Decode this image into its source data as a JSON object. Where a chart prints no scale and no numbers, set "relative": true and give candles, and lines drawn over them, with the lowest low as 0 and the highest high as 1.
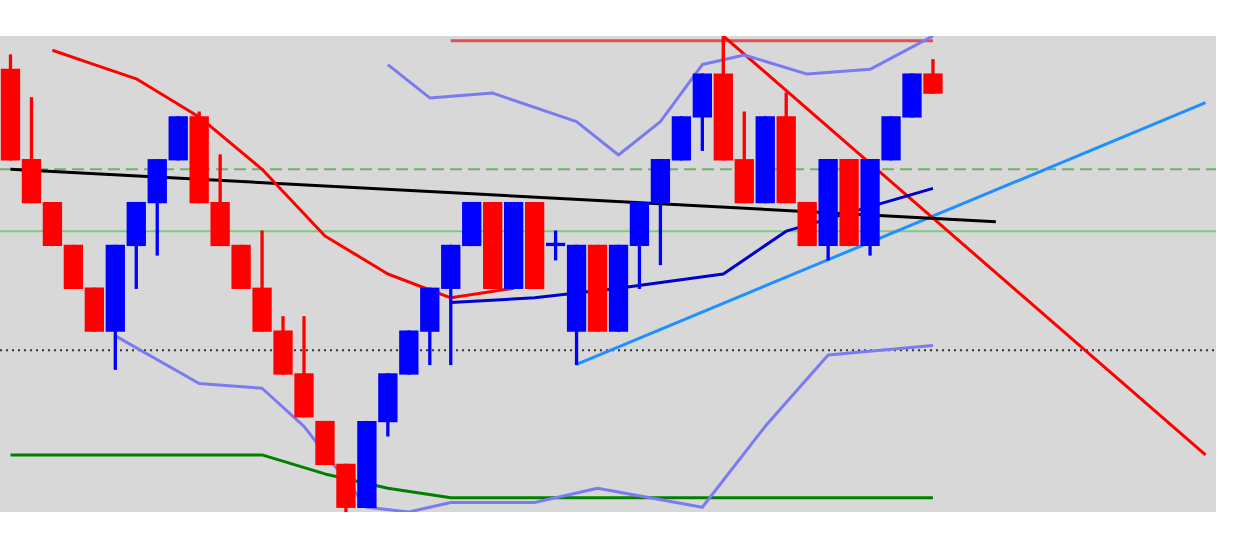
{
  "chart_data": {
    "type": "candlestick",
    "relative": true,
    "legend": false,
    "categories": [
      null,
      null,
      null,
      null,
      null,
      null,
      null,
      null,
      null,
      null,
      null,
      null,
      null,
      null,
      null,
      null,
      null,
      null,
      null,
      null,
      null,
      null,
      null,
      null,
      null,
      null,
      null,
      null,
      null,
      null,
      null,
      null,
      null,
      null,
      null,
      null,
      null,
      null,
      null,
      null,
      null,
      null,
      null,
      null,
      null,
      null,
      null,
      null,
      null,
      null,
      null,
      null,
      null,
      null,
      null,
      null,
      null,
      null
    ],
    "ohlc": [
      [
        0.93,
        0.96,
        0.74,
        0.74
      ],
      [
        0.74,
        0.87,
        0.65,
        0.65
      ],
      [
        0.65,
        0.65,
        0.56,
        0.56
      ],
      [
        0.56,
        0.56,
        0.47,
        0.47
      ],
      [
        0.47,
        0.47,
        0.38,
        0.38
      ],
      [
        0.38,
        0.56,
        0.3,
        0.56
      ],
      [
        0.56,
        0.65,
        0.47,
        0.65
      ],
      [
        0.65,
        0.74,
        0.54,
        0.74
      ],
      [
        0.74,
        0.83,
        0.74,
        0.83
      ],
      [
        0.83,
        0.84,
        0.65,
        0.65
      ],
      [
        0.65,
        0.75,
        0.56,
        0.56
      ],
      [
        0.56,
        0.56,
        0.47,
        0.47
      ],
      [
        0.47,
        0.59,
        0.38,
        0.38
      ],
      [
        0.38,
        0.41,
        0.29,
        0.29
      ],
      [
        0.29,
        0.41,
        0.2,
        0.2
      ],
      [
        0.19,
        0.19,
        0.1,
        0.1
      ],
      [
        0.1,
        0.1,
        0,
        0.01
      ],
      [
        0.01,
        0.19,
        0.01,
        0.19
      ],
      [
        0.19,
        0.29,
        0.16,
        0.29
      ],
      [
        0.29,
        0.38,
        0.29,
        0.38
      ],
      [
        0.38,
        0.47,
        0.31,
        0.47
      ],
      [
        0.47,
        0.56,
        0.31,
        0.56
      ],
      [
        0.56,
        0.65,
        0.56,
        0.65
      ],
      [
        0.65,
        0.65,
        0.47,
        0.47
      ],
      [
        0.47,
        0.65,
        0.47,
        0.65
      ],
      [
        0.65,
        0.65,
        0.47,
        0.47
      ],
      [
        0.56,
        0.59,
        0.53,
        0.56
      ],
      [
        0.38,
        0.56,
        0.31,
        0.56
      ],
      [
        0.56,
        0.56,
        0.38,
        0.38
      ],
      [
        0.38,
        0.56,
        0.38,
        0.56
      ],
      [
        0.56,
        0.65,
        0.47,
        0.65
      ],
      [
        0.65,
        0.74,
        0.52,
        0.74
      ],
      [
        0.74,
        0.83,
        0.74,
        0.83
      ],
      [
        0.83,
        0.92,
        0.76,
        0.92
      ],
      [
        0.92,
        1,
        0.74,
        0.74
      ],
      [
        0.74,
        0.84,
        0.65,
        0.65
      ],
      [
        0.65,
        0.83,
        0.65,
        0.83
      ],
      [
        0.83,
        0.88,
        0.65,
        0.65
      ],
      [
        0.65,
        0.65,
        0.56,
        0.56
      ],
      [
        0.56,
        0.74,
        0.53,
        0.74
      ],
      [
        0.74,
        0.74,
        0.56,
        0.56
      ],
      [
        0.56,
        0.74,
        0.54,
        0.74
      ],
      [
        0.74,
        0.83,
        0.74,
        0.83
      ],
      [
        0.83,
        0.92,
        0.83,
        0.92
      ],
      [
        0.92,
        0.95,
        0.88,
        0.88
      ],
      null,
      null,
      null,
      null,
      null,
      null,
      null,
      null,
      null,
      null,
      null,
      null,
      null
    ],
    "colors": [
      "#ff0000",
      "#ff0000",
      "#ff0000",
      "#ff0000",
      "#ff0000",
      "#0000ff",
      "#0000ff",
      "#0000ff",
      "#0000ff",
      "#ff0000",
      "#ff0000",
      "#ff0000",
      "#ff0000",
      "#ff0000",
      "#ff0000",
      "#ff0000",
      "#ff0000",
      "#0000ff",
      "#0000ff",
      "#0000ff",
      "#0000ff",
      "#0000ff",
      "#0000ff",
      "#ff0000",
      "#0000ff",
      "#ff0000",
      "#0000ff",
      "#0000ff",
      "#ff0000",
      "#0000ff",
      "#0000ff",
      "#0000ff",
      "#0000ff",
      "#0000ff",
      "#ff0000",
      "#ff0000",
      "#0000ff",
      "#ff0000",
      "#ff0000",
      "#0000ff",
      "#ff0000",
      "#0000ff",
      "#0000ff",
      "#0000ff",
      "#ff0000",
      null,
      null,
      null,
      null,
      null,
      null,
      null,
      null,
      null,
      null,
      null,
      null,
      null
    ],
    "series": [
      {
        "type": "line",
        "color": "#ff0000",
        "values": [
          null,
          null,
          0.97,
          null,
          0.94,
          null,
          0.91,
          null,
          null,
          0.83,
          null,
          null,
          0.72,
          null,
          null,
          0.58,
          null,
          null,
          0.5,
          null,
          null,
          0.45,
          null,
          null,
          0.47,
          null,
          null,
          null,
          null,
          null,
          null,
          null,
          null,
          null,
          null,
          null,
          null,
          null,
          null,
          null,
          null,
          null,
          null,
          null,
          null,
          null,
          null,
          null,
          null,
          null,
          null,
          null,
          null,
          null,
          null,
          null,
          null,
          null
        ]
      },
      {
        "type": "line",
        "color": "#7b7bf0",
        "values": [
          null,
          null,
          null,
          null,
          null,
          null,
          null,
          null,
          null,
          null,
          null,
          null,
          null,
          null,
          null,
          null,
          null,
          null,
          0.94,
          null,
          0.87,
          null,
          null,
          0.88,
          null,
          null,
          null,
          0.82,
          null,
          0.75,
          null,
          0.82,
          null,
          0.94,
          null,
          0.96,
          null,
          null,
          0.92,
          null,
          null,
          0.93,
          null,
          null,
          1,
          null,
          null,
          null,
          null,
          null,
          null,
          null,
          null,
          null,
          null,
          null,
          null,
          null
        ]
      },
      {
        "type": "line",
        "color": "#7b7bf0",
        "values": [
          null,
          null,
          null,
          null,
          null,
          0.37,
          null,
          null,
          null,
          0.27,
          null,
          null,
          0.26,
          null,
          0.18,
          null,
          null,
          0.01,
          null,
          0,
          null,
          0.02,
          null,
          null,
          null,
          0.02,
          null,
          null,
          0.05,
          null,
          null,
          null,
          null,
          0.01,
          null,
          null,
          0.18,
          null,
          null,
          0.33,
          null,
          null,
          null,
          null,
          0.35,
          null,
          null,
          null,
          null,
          null,
          null,
          null,
          null,
          null,
          null,
          null,
          null,
          null
        ]
      },
      {
        "type": "line",
        "color": "#0000cc",
        "values": [
          null,
          null,
          null,
          null,
          null,
          null,
          null,
          null,
          null,
          null,
          null,
          null,
          null,
          null,
          null,
          null,
          null,
          null,
          null,
          null,
          null,
          0.44,
          null,
          null,
          null,
          0.45,
          null,
          null,
          null,
          0.47,
          null,
          null,
          null,
          null,
          0.5,
          null,
          null,
          0.59,
          null,
          null,
          null,
          null,
          null,
          null,
          0.68,
          null,
          null,
          null,
          null,
          null,
          null,
          null,
          null,
          null,
          null,
          null,
          null,
          null
        ]
      },
      {
        "type": "line",
        "color": "#008000",
        "values": [
          0.12,
          null,
          null,
          null,
          null,
          null,
          null,
          null,
          null,
          null,
          null,
          null,
          0.12,
          null,
          null,
          0.08,
          null,
          null,
          0.05,
          null,
          null,
          0.03,
          null,
          null,
          null,
          null,
          null,
          null,
          null,
          null,
          null,
          null,
          null,
          null,
          null,
          null,
          null,
          null,
          null,
          null,
          null,
          null,
          null,
          null,
          0.03,
          null,
          null,
          null,
          null,
          null,
          null,
          null,
          null,
          null,
          null,
          null,
          null,
          null
        ]
      },
      {
        "type": "line",
        "color": "#000000",
        "values": [
          0.72,
          null,
          null,
          null,
          null,
          null,
          null,
          null,
          null,
          null,
          null,
          null,
          null,
          null,
          null,
          null,
          null,
          null,
          null,
          null,
          null,
          null,
          null,
          null,
          null,
          null,
          null,
          null,
          null,
          null,
          null,
          null,
          null,
          null,
          null,
          null,
          null,
          null,
          null,
          null,
          null,
          null,
          null,
          null,
          null,
          null,
          null,
          0.61,
          null,
          null,
          null,
          null,
          null,
          null,
          null,
          null,
          null,
          null
        ]
      },
      {
        "type": "line",
        "color": "#ff0000",
        "values": [
          null,
          null,
          null,
          null,
          null,
          null,
          null,
          null,
          null,
          null,
          null,
          null,
          null,
          null,
          null,
          null,
          null,
          null,
          null,
          null,
          null,
          null,
          null,
          null,
          null,
          null,
          null,
          null,
          null,
          null,
          null,
          null,
          null,
          null,
          1,
          null,
          null,
          null,
          null,
          null,
          null,
          null,
          null,
          null,
          null,
          null,
          null,
          null,
          null,
          null,
          null,
          null,
          null,
          null,
          null,
          null,
          null,
          0.12
        ]
      },
      {
        "type": "line",
        "color": "#1e90ff",
        "values": [
          null,
          null,
          null,
          null,
          null,
          null,
          null,
          null,
          null,
          null,
          null,
          null,
          null,
          null,
          null,
          null,
          null,
          null,
          null,
          null,
          null,
          null,
          null,
          null,
          null,
          null,
          null,
          0.31,
          null,
          null,
          null,
          null,
          null,
          null,
          null,
          null,
          null,
          null,
          null,
          null,
          null,
          null,
          null,
          null,
          null,
          null,
          null,
          null,
          null,
          null,
          null,
          null,
          null,
          null,
          null,
          null,
          null,
          0.86
        ]
      },
      {
        "type": "line",
        "color": "#e05050",
        "values": [
          null,
          null,
          null,
          null,
          null,
          null,
          null,
          null,
          null,
          null,
          null,
          null,
          null,
          null,
          null,
          null,
          null,
          null,
          null,
          null,
          null,
          0.99,
          null,
          null,
          null,
          null,
          null,
          null,
          null,
          null,
          null,
          null,
          null,
          null,
          null,
          null,
          null,
          null,
          null,
          null,
          null,
          null,
          null,
          null,
          0.99,
          null,
          null,
          null,
          null,
          null,
          null,
          null,
          null,
          null,
          null,
          null,
          null,
          null
        ]
      }
    ],
    "ref_lines": [
      {
        "axis": "y",
        "value": 0.72,
        "color": "#70b070",
        "line_style": "dashed"
      },
      {
        "axis": "y",
        "value": 0.59,
        "color": "#80c880",
        "line_style": "solid"
      },
      {
        "axis": "y",
        "value": 0.34,
        "color": "#333333",
        "line_style": "dotted"
      }
    ]
  }
}
